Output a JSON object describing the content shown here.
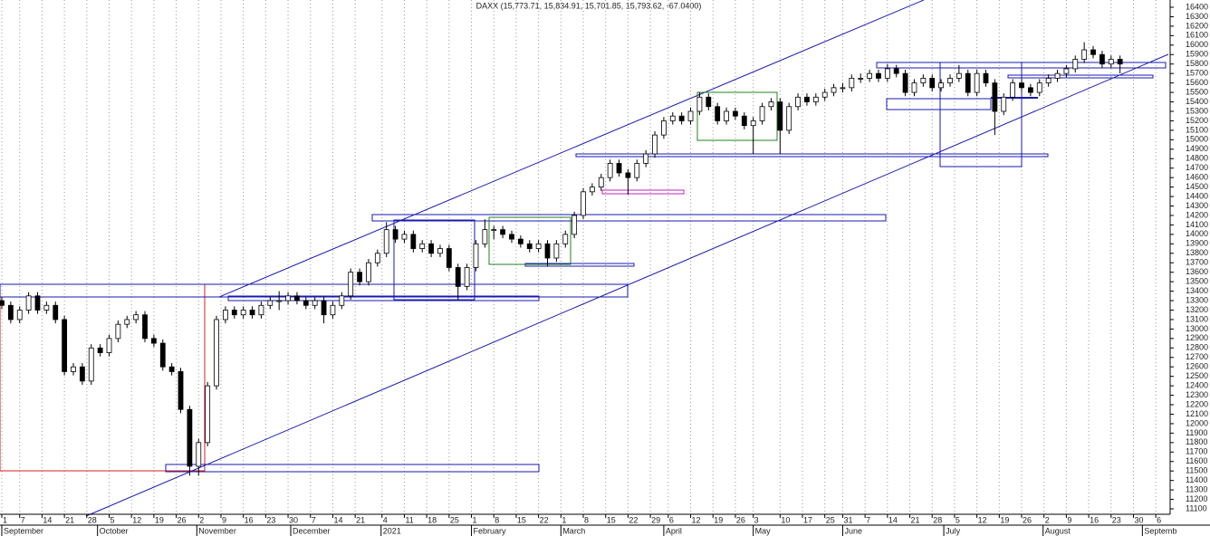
{
  "chart_data": {
    "type": "candlestick",
    "title": "DAXX (15,773.71, 15,834.91, 15,701.85, 15,793.62, -67.0400)",
    "up_color": "#ffffff",
    "down_color": "#000000",
    "candles": [
      [
        13300,
        13340,
        13210,
        13250
      ],
      [
        13250,
        13290,
        13060,
        13100
      ],
      [
        13100,
        13240,
        13060,
        13200
      ],
      [
        13200,
        13390,
        13160,
        13350
      ],
      [
        13350,
        13390,
        13160,
        13200
      ],
      [
        13200,
        13290,
        13160,
        13250
      ],
      [
        13250,
        13290,
        13060,
        13100
      ],
      [
        13100,
        13140,
        12510,
        12550
      ],
      [
        12550,
        12640,
        12510,
        12600
      ],
      [
        12600,
        12640,
        12410,
        12450
      ],
      [
        12450,
        12840,
        12410,
        12800
      ],
      [
        12800,
        12840,
        12710,
        12750
      ],
      [
        12750,
        12940,
        12710,
        12900
      ],
      [
        12900,
        13090,
        12860,
        13050
      ],
      [
        13050,
        13140,
        13010,
        13100
      ],
      [
        13100,
        13190,
        13060,
        13150
      ],
      [
        13150,
        13190,
        12860,
        12900
      ],
      [
        12900,
        12940,
        12810,
        12850
      ],
      [
        12850,
        12890,
        12560,
        12600
      ],
      [
        12600,
        12640,
        12510,
        12550
      ],
      [
        12550,
        12590,
        12110,
        12150
      ],
      [
        12150,
        12190,
        11450,
        11550
      ],
      [
        11550,
        11840,
        11450,
        11800
      ],
      [
        11800,
        12440,
        11760,
        12400
      ],
      [
        12400,
        13140,
        12360,
        13100
      ],
      [
        13100,
        13240,
        13060,
        13200
      ],
      [
        13200,
        13240,
        13110,
        13150
      ],
      [
        13150,
        13240,
        13110,
        13200
      ],
      [
        13200,
        13240,
        13110,
        13150
      ],
      [
        13150,
        13290,
        13110,
        13250
      ],
      [
        13250,
        13340,
        13210,
        13300
      ],
      [
        13300,
        13400,
        13200,
        13300
      ],
      [
        13300,
        13390,
        13260,
        13350
      ],
      [
        13350,
        13390,
        13260,
        13300
      ],
      [
        13300,
        13340,
        13210,
        13250
      ],
      [
        13250,
        13340,
        13210,
        13300
      ],
      [
        13300,
        13340,
        13060,
        13150
      ],
      [
        13150,
        13290,
        13110,
        13250
      ],
      [
        13250,
        13390,
        13210,
        13350
      ],
      [
        13350,
        13640,
        13310,
        13600
      ],
      [
        13600,
        13640,
        13460,
        13500
      ],
      [
        13500,
        13740,
        13460,
        13700
      ],
      [
        13700,
        13840,
        13660,
        13800
      ],
      [
        13800,
        14130,
        13760,
        14050
      ],
      [
        14050,
        14090,
        13910,
        13950
      ],
      [
        13950,
        14040,
        13910,
        14000
      ],
      [
        14000,
        14040,
        13810,
        13850
      ],
      [
        13850,
        13940,
        13810,
        13900
      ],
      [
        13900,
        13940,
        13760,
        13800
      ],
      [
        13800,
        13890,
        13760,
        13850
      ],
      [
        13850,
        13890,
        13610,
        13650
      ],
      [
        13650,
        13690,
        13310,
        13450
      ],
      [
        13450,
        13690,
        13410,
        13650
      ],
      [
        13650,
        13940,
        13610,
        13900
      ],
      [
        13900,
        14160,
        13860,
        14050
      ],
      [
        14050,
        14090,
        13950,
        14050
      ],
      [
        14050,
        14090,
        13960,
        14000
      ],
      [
        14000,
        14040,
        13910,
        13950
      ],
      [
        13950,
        13990,
        13860,
        13900
      ],
      [
        13900,
        13940,
        13810,
        13850
      ],
      [
        13850,
        13940,
        13810,
        13900
      ],
      [
        13900,
        13940,
        13660,
        13750
      ],
      [
        13750,
        13940,
        13710,
        13900
      ],
      [
        13900,
        14040,
        13860,
        14000
      ],
      [
        14000,
        14240,
        13960,
        14200
      ],
      [
        14200,
        14490,
        14160,
        14450
      ],
      [
        14450,
        14540,
        14410,
        14500
      ],
      [
        14500,
        14640,
        14460,
        14600
      ],
      [
        14600,
        14790,
        14560,
        14750
      ],
      [
        14750,
        14790,
        14610,
        14650
      ],
      [
        14650,
        14690,
        14420,
        14600
      ],
      [
        14600,
        14790,
        14560,
        14750
      ],
      [
        14750,
        14890,
        14710,
        14850
      ],
      [
        14850,
        15090,
        14810,
        15050
      ],
      [
        15050,
        15240,
        15010,
        15200
      ],
      [
        15200,
        15290,
        15160,
        15250
      ],
      [
        15250,
        15290,
        15160,
        15200
      ],
      [
        15200,
        15340,
        15160,
        15300
      ],
      [
        15300,
        15500,
        15260,
        15450
      ],
      [
        15450,
        15490,
        15310,
        15350
      ],
      [
        15350,
        15390,
        15160,
        15200
      ],
      [
        15200,
        15340,
        15160,
        15300
      ],
      [
        15300,
        15340,
        15210,
        15250
      ],
      [
        15250,
        15290,
        15110,
        15150
      ],
      [
        15150,
        15240,
        14850,
        15200
      ],
      [
        15200,
        15390,
        15160,
        15350
      ],
      [
        15350,
        15440,
        15310,
        15400
      ],
      [
        15400,
        15440,
        14850,
        15100
      ],
      [
        15100,
        15390,
        15060,
        15350
      ],
      [
        15350,
        15490,
        15310,
        15450
      ],
      [
        15450,
        15490,
        15360,
        15400
      ],
      [
        15400,
        15490,
        15360,
        15450
      ],
      [
        15450,
        15540,
        15410,
        15500
      ],
      [
        15500,
        15590,
        15460,
        15550
      ],
      [
        15550,
        15600,
        15500,
        15550
      ],
      [
        15550,
        15690,
        15510,
        15650
      ],
      [
        15650,
        15700,
        15600,
        15650
      ],
      [
        15650,
        15740,
        15610,
        15700
      ],
      [
        15700,
        15740,
        15610,
        15650
      ],
      [
        15650,
        15800,
        15610,
        15750
      ],
      [
        15750,
        15790,
        15660,
        15700
      ],
      [
        15700,
        15740,
        15460,
        15500
      ],
      [
        15500,
        15640,
        15460,
        15600
      ],
      [
        15600,
        15690,
        15560,
        15650
      ],
      [
        15650,
        15690,
        15510,
        15550
      ],
      [
        15550,
        15640,
        15510,
        15600
      ],
      [
        15600,
        15690,
        15560,
        15650
      ],
      [
        15650,
        15790,
        15610,
        15700
      ],
      [
        15700,
        15740,
        15460,
        15500
      ],
      [
        15500,
        15740,
        15460,
        15700
      ],
      [
        15700,
        15740,
        15560,
        15600
      ],
      [
        15600,
        15640,
        15050,
        15300
      ],
      [
        15300,
        15490,
        15260,
        15450
      ],
      [
        15450,
        15640,
        15410,
        15600
      ],
      [
        15600,
        15640,
        15510,
        15550
      ],
      [
        15550,
        15590,
        15460,
        15500
      ],
      [
        15500,
        15640,
        15460,
        15600
      ],
      [
        15600,
        15690,
        15560,
        15650
      ],
      [
        15650,
        15740,
        15610,
        15700
      ],
      [
        15700,
        15790,
        15660,
        15750
      ],
      [
        15750,
        15890,
        15710,
        15850
      ],
      [
        15850,
        16030,
        15810,
        15950
      ],
      [
        15950,
        15990,
        15860,
        15900
      ],
      [
        15900,
        15940,
        15760,
        15800
      ],
      [
        15800,
        15890,
        15760,
        15850
      ],
      [
        15850,
        15890,
        15700,
        15800
      ]
    ],
    "ylim": [
      11100,
      16400
    ],
    "yticks": [
      11100,
      11200,
      11300,
      11400,
      11500,
      11600,
      11700,
      11800,
      11900,
      12000,
      12100,
      12200,
      12300,
      12400,
      12500,
      12600,
      12700,
      12800,
      12900,
      13000,
      13100,
      13200,
      13300,
      13400,
      13500,
      13600,
      13700,
      13800,
      13900,
      14000,
      14100,
      14200,
      14300,
      14400,
      14500,
      14600,
      14700,
      14800,
      14900,
      15000,
      15100,
      15200,
      15300,
      15400,
      15500,
      15600,
      15700,
      15800,
      15900,
      16000,
      16100,
      16200,
      16300,
      16400
    ],
    "xlim": [
      -0.2,
      130.4
    ],
    "xticks": [
      {
        "value": 0,
        "label": "1"
      },
      {
        "value": 2,
        "label": "7"
      },
      {
        "value": 4.5,
        "label": "14"
      },
      {
        "value": 7,
        "label": "21"
      },
      {
        "value": 9.5,
        "label": "28"
      },
      {
        "value": 12,
        "label": "5"
      },
      {
        "value": 14.5,
        "label": "12"
      },
      {
        "value": 17,
        "label": "19"
      },
      {
        "value": 19.5,
        "label": "26"
      },
      {
        "value": 22,
        "label": "2"
      },
      {
        "value": 24.5,
        "label": "9"
      },
      {
        "value": 27,
        "label": "16"
      },
      {
        "value": 29.5,
        "label": "23"
      },
      {
        "value": 32,
        "label": "30"
      },
      {
        "value": 34.5,
        "label": "7"
      },
      {
        "value": 37,
        "label": "14"
      },
      {
        "value": 39.5,
        "label": "21"
      },
      {
        "value": 42.5,
        "label": "4"
      },
      {
        "value": 45,
        "label": "11"
      },
      {
        "value": 47.5,
        "label": "18"
      },
      {
        "value": 50,
        "label": "25"
      },
      {
        "value": 52.5,
        "label": "1"
      },
      {
        "value": 55,
        "label": "8"
      },
      {
        "value": 57.5,
        "label": "15"
      },
      {
        "value": 60,
        "label": "22"
      },
      {
        "value": 62.5,
        "label": "1"
      },
      {
        "value": 65,
        "label": "8"
      },
      {
        "value": 67.5,
        "label": "15"
      },
      {
        "value": 70,
        "label": "22"
      },
      {
        "value": 72.5,
        "label": "29"
      },
      {
        "value": 74.5,
        "label": "6"
      },
      {
        "value": 77,
        "label": "12"
      },
      {
        "value": 79.5,
        "label": "19"
      },
      {
        "value": 82,
        "label": "26"
      },
      {
        "value": 84,
        "label": "3"
      },
      {
        "value": 87,
        "label": "10"
      },
      {
        "value": 89.5,
        "label": "17"
      },
      {
        "value": 92,
        "label": "25"
      },
      {
        "value": 94,
        "label": "31"
      },
      {
        "value": 96.5,
        "label": "7"
      },
      {
        "value": 99,
        "label": "14"
      },
      {
        "value": 101.5,
        "label": "21"
      },
      {
        "value": 104,
        "label": "28"
      },
      {
        "value": 106.5,
        "label": "5"
      },
      {
        "value": 109,
        "label": "12"
      },
      {
        "value": 111.5,
        "label": "19"
      },
      {
        "value": 114,
        "label": "26"
      },
      {
        "value": 116.5,
        "label": "2"
      },
      {
        "value": 119,
        "label": "9"
      },
      {
        "value": 121.5,
        "label": "16"
      },
      {
        "value": 124,
        "label": "23"
      },
      {
        "value": 126.5,
        "label": "30"
      },
      {
        "value": 129,
        "label": "6"
      }
    ],
    "month_labels": [
      {
        "value": 0,
        "label": "September"
      },
      {
        "value": 10.7,
        "label": "October"
      },
      {
        "value": 21.8,
        "label": "November"
      },
      {
        "value": 32.3,
        "label": "December"
      },
      {
        "value": 42.4,
        "label": "2021"
      },
      {
        "value": 52.5,
        "label": "February"
      },
      {
        "value": 62.5,
        "label": "March"
      },
      {
        "value": 74,
        "label": "April"
      },
      {
        "value": 84,
        "label": "May"
      },
      {
        "value": 94,
        "label": "June"
      },
      {
        "value": 105.3,
        "label": "July"
      },
      {
        "value": 116.4,
        "label": "August"
      },
      {
        "value": 127.5,
        "label": "Septemb"
      }
    ]
  }
}
